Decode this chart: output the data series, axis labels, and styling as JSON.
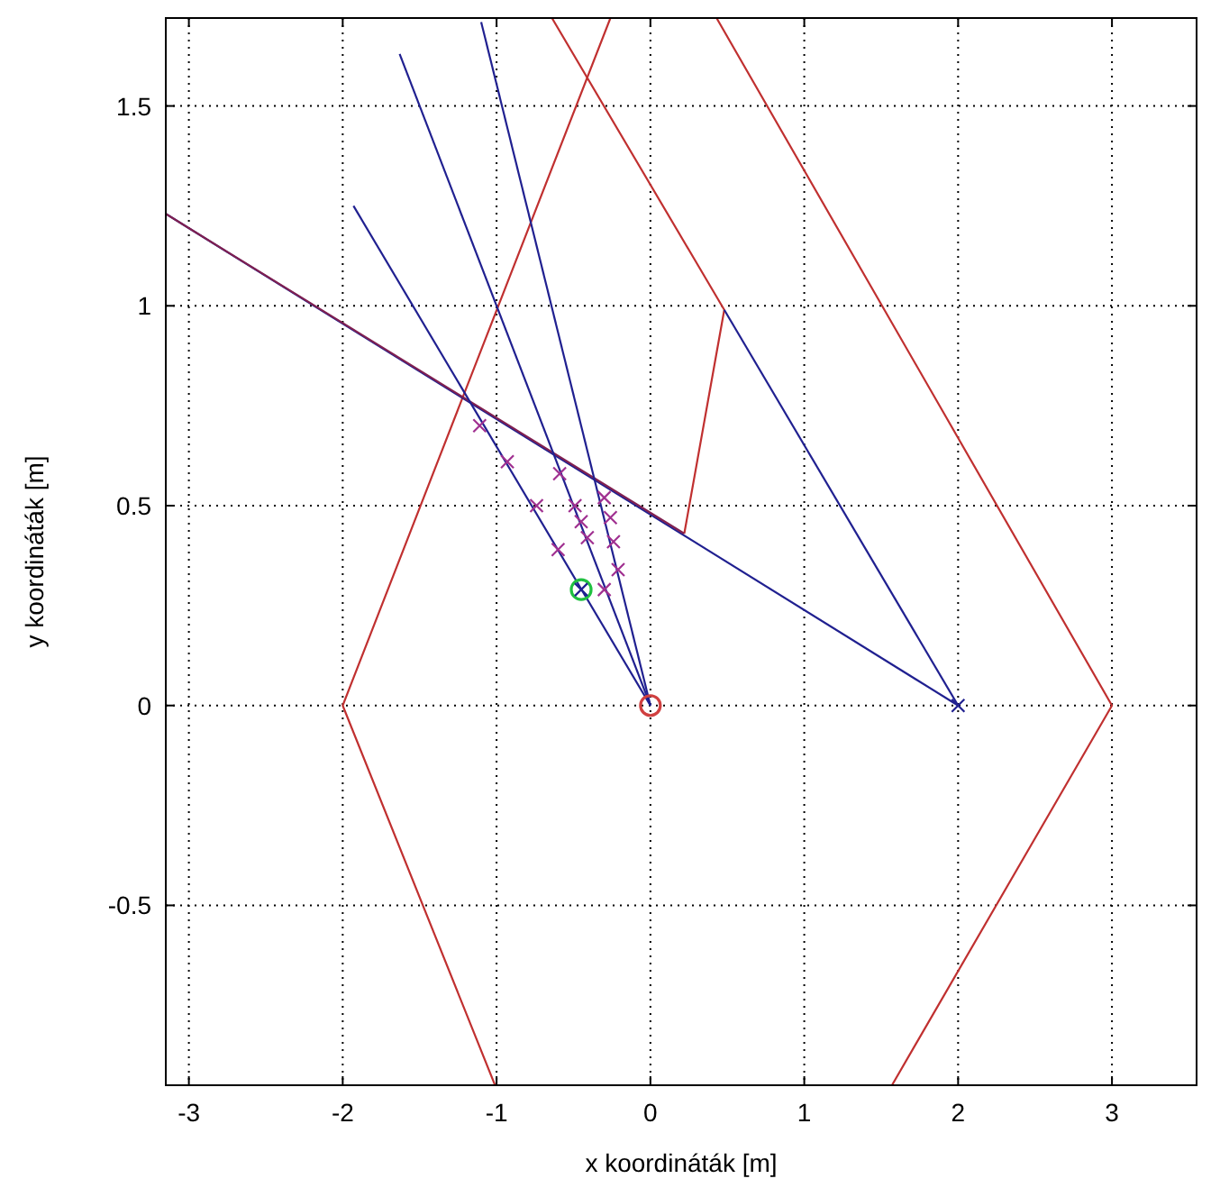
{
  "chart_data": {
    "type": "line",
    "xlabel": "x koordináták [m]",
    "ylabel": "y koordináták [m]",
    "xlim": [
      -3.15,
      3.55
    ],
    "ylim": [
      -0.95,
      1.72
    ],
    "xticks": [
      -3,
      -2,
      -1,
      0,
      1,
      2,
      3
    ],
    "yticks": [
      -0.5,
      0,
      0.5,
      1,
      1.5
    ],
    "grid": true,
    "line_style": "solid",
    "series": [
      {
        "color": "#c03030",
        "x": [
          -1.01,
          -2,
          -0.26
        ],
        "values": [
          -0.95,
          0,
          1.72
        ]
      },
      {
        "color": "#c03030",
        "x": [
          1.57,
          3,
          0.43
        ],
        "values": [
          -0.95,
          0,
          1.72
        ]
      },
      {
        "color": "#c03030",
        "x": [
          -0.64,
          0.48,
          0.22
        ],
        "values": [
          1.72,
          0.99,
          0.43
        ]
      },
      {
        "color": "#202090",
        "x": [
          2,
          0.48
        ],
        "values": [
          0,
          0.99
        ]
      },
      {
        "color": "#202090",
        "x": [
          2,
          -3.15
        ],
        "values": [
          0,
          1.23
        ]
      },
      {
        "color": "#802050",
        "x": [
          0.22,
          -3.15
        ],
        "values": [
          0.43,
          1.23
        ]
      },
      {
        "color": "#202090",
        "x": [
          0,
          -1.93
        ],
        "values": [
          0,
          1.25
        ]
      },
      {
        "color": "#202090",
        "x": [
          0,
          -1.63
        ],
        "values": [
          0,
          1.63
        ]
      },
      {
        "color": "#202090",
        "x": [
          0,
          -1.1
        ],
        "values": [
          0,
          1.71
        ]
      },
      {
        "type": "scatter",
        "color": "#a03090",
        "marker": "cross",
        "x": [
          -1.11,
          -0.93,
          -0.74,
          -0.6,
          -0.59,
          -0.49,
          -0.45,
          -0.41,
          -0.3,
          -0.26,
          -0.24,
          -0.21,
          -0.3
        ],
        "values": [
          0.7,
          0.61,
          0.5,
          0.39,
          0.58,
          0.5,
          0.46,
          0.42,
          0.52,
          0.47,
          0.41,
          0.34,
          0.29
        ]
      },
      {
        "type": "scatter",
        "color": "#20c040",
        "marker": "circle",
        "x": [
          -0.45
        ],
        "values": [
          0.29
        ]
      },
      {
        "type": "scatter",
        "color": "#202090",
        "marker": "cross",
        "x": [
          -0.45,
          2
        ],
        "values": [
          0.29,
          0
        ]
      },
      {
        "type": "scatter",
        "color": "#d04040",
        "marker": "circle",
        "x": [
          0
        ],
        "values": [
          0
        ]
      }
    ]
  }
}
